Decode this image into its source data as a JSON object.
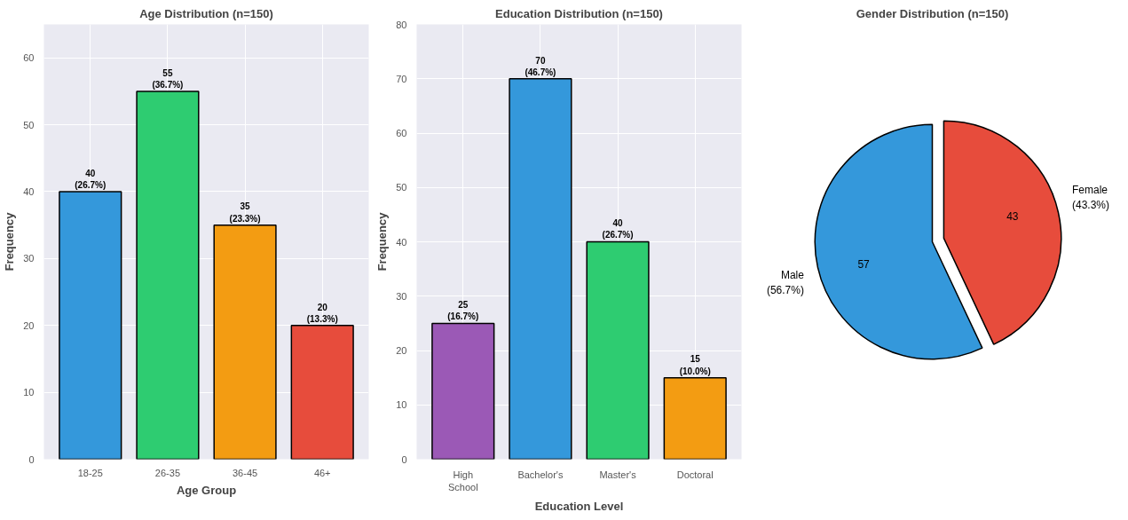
{
  "chart_data": [
    {
      "type": "bar",
      "title": "Age Distribution (n=150)",
      "xlabel": "Age Group",
      "ylabel": "Frequency",
      "categories": [
        "18-25",
        "26-35",
        "36-45",
        "46+"
      ],
      "values": [
        40,
        55,
        35,
        20
      ],
      "colors": [
        "#3498db",
        "#2ecc71",
        "#f39c12",
        "#e74c3c"
      ],
      "value_labels": [
        "40\n(26.7%)",
        "55\n(36.7%)",
        "35\n(23.3%)",
        "20\n(13.3%)"
      ],
      "ylim": [
        0,
        65
      ],
      "yticks": [
        0,
        10,
        20,
        30,
        40,
        50,
        60
      ],
      "grid": true
    },
    {
      "type": "bar",
      "title": "Education Distribution (n=150)",
      "xlabel": "Education Level",
      "ylabel": "Frequency",
      "categories": [
        "High\nSchool",
        "Bachelor's",
        "Master's",
        "Doctoral"
      ],
      "values": [
        25,
        70,
        40,
        15
      ],
      "colors": [
        "#9b59b6",
        "#3498db",
        "#2ecc71",
        "#f39c12"
      ],
      "value_labels": [
        "25\n(16.7%)",
        "70\n(46.7%)",
        "40\n(26.7%)",
        "15\n(10.0%)"
      ],
      "ylim": [
        0,
        80
      ],
      "yticks": [
        0,
        10,
        20,
        30,
        40,
        50,
        60,
        70,
        80
      ],
      "grid": true
    },
    {
      "type": "pie",
      "title": "Gender Distribution (n=150)",
      "categories": [
        "Male\n(56.7%)",
        "Female\n(43.3%)"
      ],
      "values": [
        57,
        43
      ],
      "colors": [
        "#3498db",
        "#e74c3c"
      ],
      "value_labels": [
        "57",
        "43"
      ]
    }
  ]
}
